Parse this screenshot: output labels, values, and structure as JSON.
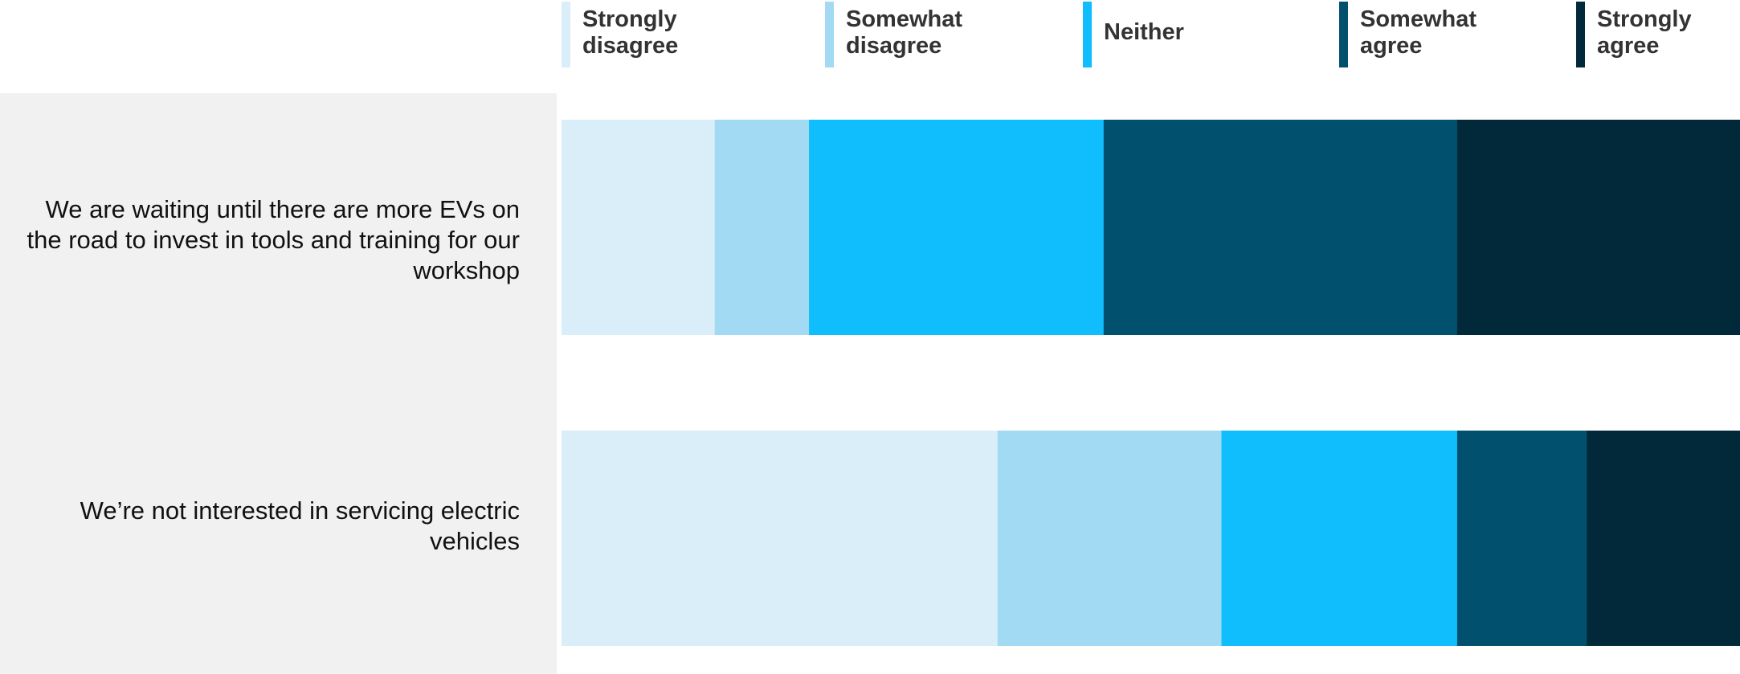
{
  "chart_data": {
    "type": "bar",
    "orientation": "horizontal",
    "stacked": "100%",
    "categories": [
      "We are waiting until there are more EVs on the road to invest in tools and training for our workshop",
      "We’re not interested in servicing electric vehicles"
    ],
    "series": [
      {
        "name": "Strongly disagree",
        "color": "#d9eef9",
        "values": [
          13,
          37
        ]
      },
      {
        "name": "Somewhat disagree",
        "color": "#a2d9f3",
        "values": [
          8,
          19
        ]
      },
      {
        "name": "Neither",
        "color": "#10bdfd",
        "values": [
          25,
          20
        ]
      },
      {
        "name": "Somewhat agree",
        "color": "#00506e",
        "values": [
          30,
          11
        ]
      },
      {
        "name": "Strongly agree",
        "color": "#02293a",
        "values": [
          24,
          13
        ]
      }
    ],
    "legend_position": "top",
    "grid": false,
    "xlim": [
      0,
      100
    ]
  }
}
